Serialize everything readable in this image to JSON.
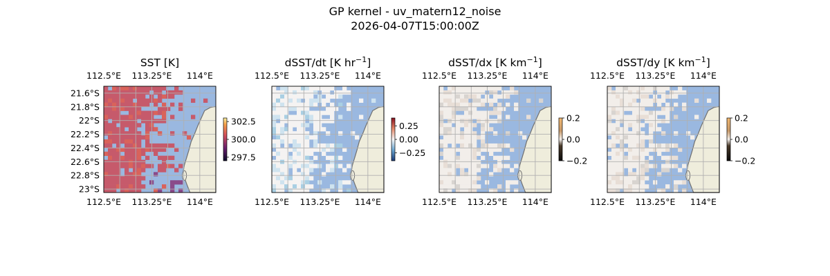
{
  "figure": {
    "title_line1": "GP kernel - uv_matern12_noise",
    "title_line2": "2026-04-07T15:00:00Z"
  },
  "chart_data": [
    {
      "type": "heatmap",
      "title": "SST [K]",
      "title_base": "SST [K]",
      "title_sup": "",
      "title_tail": "",
      "lon_ticks": [
        "112.5°E",
        "113.25°E",
        "114°E"
      ],
      "lon_tick_values": [
        112.5,
        113.25,
        114.0
      ],
      "lat_ticks": [
        "21.6°S",
        "21.8°S",
        "22°S",
        "22.2°S",
        "22.4°S",
        "22.6°S",
        "22.8°S",
        "23°S"
      ],
      "lat_tick_values": [
        -21.6,
        -21.8,
        -22.0,
        -22.2,
        -22.4,
        -22.6,
        -22.8,
        -23.0
      ],
      "xlim": [
        112.5,
        114.25
      ],
      "ylim": [
        -23.05,
        -21.5
      ],
      "colormap": "inferno (alpha overlay on ocean blue)",
      "colorbar_ticks": [
        "302.5",
        "300.0",
        "297.5"
      ],
      "colorbar_values": [
        302.5,
        300.0,
        297.5
      ],
      "colorbar_range": [
        297.0,
        303.0
      ],
      "data_description": "SST mostly ~301.5–302.5 K across observed cells"
    },
    {
      "type": "heatmap",
      "title": "dSST/dt [K hr^-1]",
      "title_base": "dSST/dt [K hr",
      "title_sup": "−1",
      "title_tail": "]",
      "lon_ticks": [
        "112.5°E",
        "113.25°E",
        "114°E"
      ],
      "lon_tick_values": [
        112.5,
        113.25,
        114.0
      ],
      "xlim": [
        112.5,
        114.25
      ],
      "ylim": [
        -23.05,
        -21.5
      ],
      "colormap": "RdBu_r",
      "colorbar_ticks": [
        "0.25",
        "0.00",
        "−0.25"
      ],
      "colorbar_values": [
        0.25,
        0.0,
        -0.25
      ],
      "colorbar_range": [
        -0.4,
        0.4
      ],
      "data_description": "mostly near 0 with light blue (negative) patches, small positive patch near south-east"
    },
    {
      "type": "heatmap",
      "title": "dSST/dx [K km^-1]",
      "title_base": "dSST/dx [K km",
      "title_sup": "−1",
      "title_tail": "]",
      "lon_ticks": [
        "112.5°E",
        "113.25°E",
        "114°E"
      ],
      "lon_tick_values": [
        112.5,
        113.25,
        114.0
      ],
      "xlim": [
        112.5,
        114.25
      ],
      "ylim": [
        -23.05,
        -21.5
      ],
      "colormap": "copper-diverging",
      "colorbar_ticks": [
        "0.2",
        "0.0",
        "−0.2"
      ],
      "colorbar_values": [
        0.2,
        0.0,
        -0.2
      ],
      "colorbar_range": [
        -0.2,
        0.2
      ],
      "data_description": "values near 0 everywhere"
    },
    {
      "type": "heatmap",
      "title": "dSST/dy [K km^-1]",
      "title_base": "dSST/dy [K km",
      "title_sup": "−1",
      "title_tail": "]",
      "lon_ticks": [
        "112.5°E",
        "113.25°E",
        "114°E"
      ],
      "lon_tick_values": [
        112.5,
        113.25,
        114.0
      ],
      "xlim": [
        112.5,
        114.25
      ],
      "ylim": [
        -23.05,
        -21.5
      ],
      "colormap": "copper-diverging",
      "colorbar_ticks": [
        "0.2",
        "0.0",
        "−0.2"
      ],
      "colorbar_values": [
        0.2,
        0.0,
        -0.2
      ],
      "colorbar_range": [
        -0.2,
        0.2
      ],
      "data_description": "values near 0 everywhere"
    }
  ],
  "colors": {
    "ocean": "#9ab8e0",
    "land": "#efeddc",
    "coast": "#707070",
    "grid": "#b0b0b0",
    "sst_fill": "#c65a6b",
    "sst_warm": "#d9635b",
    "sst_cool": "#8a4a8a",
    "grad_fill": "#f2eeea"
  }
}
